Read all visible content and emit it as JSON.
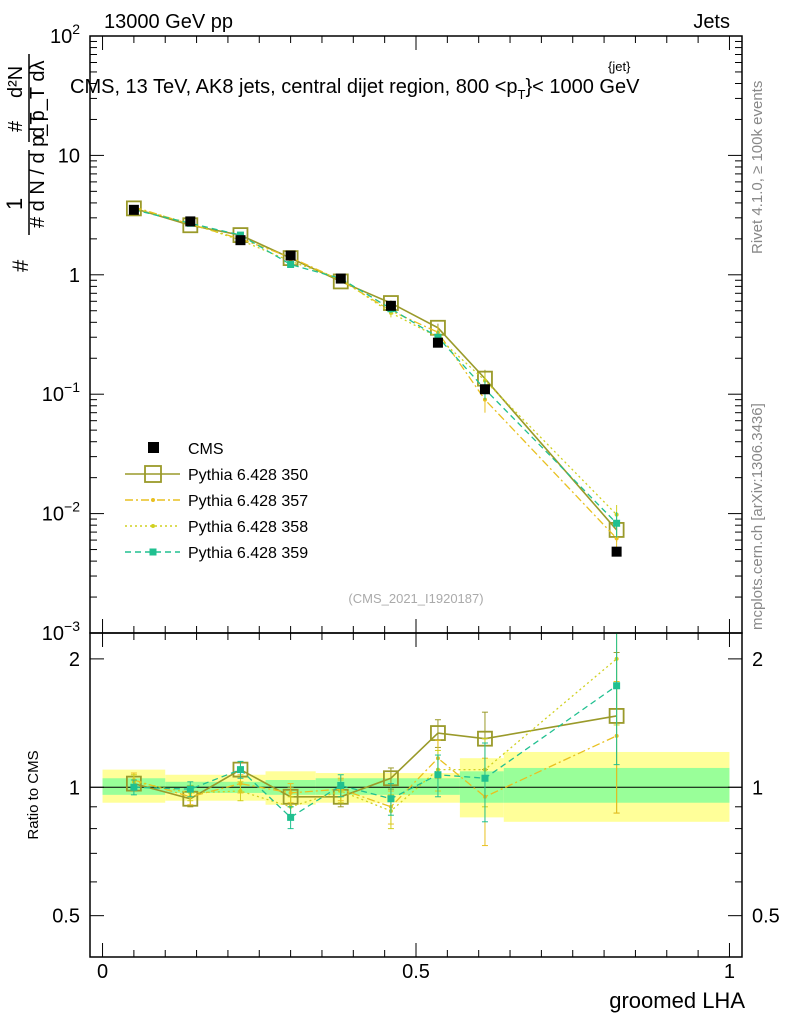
{
  "header": {
    "energy_label": "13000 GeV pp",
    "category_label": "Jets",
    "plot_title_pre": "CMS, 13 TeV, AK8 jets, central dijet region, 800 <p",
    "plot_title_sup": "{jet}",
    "plot_title_sub": "T",
    "plot_title_post": "}< 1000 GeV",
    "side_label_rivet": "Rivet 4.1.0, ≥ 100k events",
    "side_label_mcplots": "mcplots.cern.ch [arXiv:1306.3436]",
    "analysis_id": "(CMS_2021_I1920187)"
  },
  "chart_data": {
    "type": "line",
    "x_axis": {
      "label": "groomed LHA",
      "range": [
        -0.02,
        1.02
      ],
      "ticks": [
        0,
        0.5,
        1
      ],
      "tick_labels": [
        "0",
        "0.5",
        "1"
      ]
    },
    "main_panel": {
      "y_scale": "log",
      "y_range": [
        0.001,
        100
      ],
      "y_label_parts": [
        "1",
        "# d N / d p_T",
        "#",
        "d p_T dλ",
        "d²N"
      ],
      "y_tick_labels": [
        {
          "value": 100,
          "base": "10",
          "exp": "2"
        },
        {
          "value": 10,
          "base": "10",
          "exp": ""
        },
        {
          "value": 1,
          "base": "1",
          "exp": ""
        },
        {
          "value": 0.1,
          "base": "10",
          "exp": "−1"
        },
        {
          "value": 0.01,
          "base": "10",
          "exp": "−2"
        },
        {
          "value": 0.001,
          "base": "10",
          "exp": "−3"
        }
      ]
    },
    "ratio_panel": {
      "y_scale": "log",
      "y_range": [
        0.4,
        2.3
      ],
      "y_label": "Ratio to CMS",
      "y_ticks": [
        0.5,
        1,
        2
      ],
      "y_tick_labels": [
        "0.5",
        "1",
        "2"
      ],
      "band_inner": [
        {
          "x0": 0.0,
          "x1": 0.1,
          "lo": 0.96,
          "hi": 1.05
        },
        {
          "x0": 0.1,
          "x1": 0.26,
          "lo": 0.97,
          "hi": 1.03
        },
        {
          "x0": 0.26,
          "x1": 0.34,
          "lo": 0.96,
          "hi": 1.04
        },
        {
          "x0": 0.34,
          "x1": 0.57,
          "lo": 0.96,
          "hi": 1.05
        },
        {
          "x0": 0.57,
          "x1": 0.64,
          "lo": 0.92,
          "hi": 1.09
        },
        {
          "x0": 0.64,
          "x1": 1.0,
          "lo": 0.92,
          "hi": 1.11
        }
      ],
      "band_outer": [
        {
          "x0": 0.0,
          "x1": 0.1,
          "lo": 0.92,
          "hi": 1.1
        },
        {
          "x0": 0.1,
          "x1": 0.26,
          "lo": 0.93,
          "hi": 1.07
        },
        {
          "x0": 0.26,
          "x1": 0.34,
          "lo": 0.91,
          "hi": 1.09
        },
        {
          "x0": 0.34,
          "x1": 0.57,
          "lo": 0.92,
          "hi": 1.08
        },
        {
          "x0": 0.57,
          "x1": 0.64,
          "lo": 0.85,
          "hi": 1.17
        },
        {
          "x0": 0.64,
          "x1": 1.0,
          "lo": 0.83,
          "hi": 1.21
        }
      ]
    },
    "x_points": [
      0.05,
      0.14,
      0.22,
      0.3,
      0.38,
      0.46,
      0.535,
      0.61,
      0.82
    ],
    "series": [
      {
        "name": "CMS",
        "style": "data",
        "color": "#000000",
        "values": [
          3.5,
          2.8,
          1.95,
          1.45,
          0.93,
          0.55,
          0.27,
          0.11,
          0.0048
        ],
        "errors": [
          0.1,
          0.08,
          0.06,
          0.05,
          0.03,
          0.02,
          0.01,
          0.006,
          0.0004
        ],
        "ratio": [
          1,
          1,
          1,
          1,
          1,
          1,
          1,
          1,
          1
        ],
        "ratio_err": [
          0,
          0,
          0,
          0,
          0,
          0,
          0,
          0,
          0
        ]
      },
      {
        "name": "Pythia 6.428 350",
        "style": "open-square-solid",
        "color": "#9a9a2a",
        "values": [
          3.6,
          2.6,
          2.15,
          1.38,
          0.88,
          0.58,
          0.36,
          0.135,
          0.0073
        ],
        "errors": [
          0.08,
          0.06,
          0.06,
          0.05,
          0.03,
          0.03,
          0.03,
          0.025,
          0.0015
        ],
        "ratio": [
          1.02,
          0.94,
          1.1,
          0.95,
          0.95,
          1.05,
          1.34,
          1.3,
          1.47
        ],
        "ratio_err": [
          0.04,
          0.04,
          0.04,
          0.05,
          0.05,
          0.06,
          0.1,
          0.2,
          0.6
        ]
      },
      {
        "name": "Pythia 6.428 357",
        "style": "dashdot-star",
        "color": "#e8c020",
        "values": [
          3.7,
          2.65,
          2.0,
          1.4,
          0.9,
          0.5,
          0.33,
          0.09,
          0.0062
        ],
        "errors": [
          0.08,
          0.06,
          0.06,
          0.05,
          0.04,
          0.04,
          0.04,
          0.02,
          0.0015
        ],
        "ratio": [
          1.04,
          0.95,
          1.02,
          0.97,
          0.99,
          0.9,
          1.17,
          0.95,
          1.32
        ],
        "ratio_err": [
          0.04,
          0.04,
          0.05,
          0.05,
          0.06,
          0.08,
          0.12,
          0.22,
          0.45
        ]
      },
      {
        "name": "Pythia 6.428 358",
        "style": "dotted-dot",
        "color": "#d0d020",
        "values": [
          3.6,
          2.7,
          1.95,
          1.3,
          0.92,
          0.48,
          0.3,
          0.13,
          0.0098
        ],
        "errors": [
          0.08,
          0.06,
          0.06,
          0.05,
          0.04,
          0.04,
          0.04,
          0.02,
          0.002
        ],
        "ratio": [
          1.03,
          0.97,
          0.98,
          0.9,
          0.98,
          0.88,
          1.1,
          1.1,
          2.0
        ],
        "ratio_err": [
          0.04,
          0.04,
          0.05,
          0.05,
          0.06,
          0.08,
          0.12,
          0.2,
          0.6
        ]
      },
      {
        "name": "Pythia 6.428 359",
        "style": "dashed-filled-square",
        "color": "#20c090",
        "values": [
          3.5,
          2.7,
          2.15,
          1.22,
          0.93,
          0.52,
          0.3,
          0.11,
          0.0083
        ],
        "errors": [
          0.08,
          0.06,
          0.06,
          0.05,
          0.04,
          0.04,
          0.04,
          0.02,
          0.002
        ],
        "ratio": [
          1.0,
          0.99,
          1.1,
          0.85,
          1.01,
          0.94,
          1.07,
          1.05,
          1.73
        ],
        "ratio_err": [
          0.04,
          0.04,
          0.05,
          0.05,
          0.06,
          0.08,
          0.12,
          0.22,
          0.6
        ]
      }
    ],
    "legend": {
      "placement": "middle-left",
      "entries": [
        "CMS",
        "Pythia 6.428 350",
        "Pythia 6.428 357",
        "Pythia 6.428 358",
        "Pythia 6.428 359"
      ]
    }
  }
}
